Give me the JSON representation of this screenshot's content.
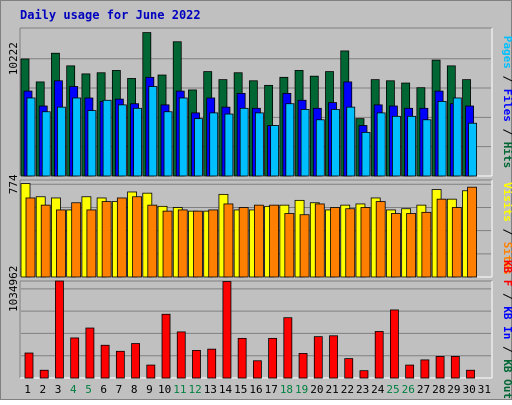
{
  "chart_data": {
    "type": "bar",
    "title": "Daily usage for June 2022",
    "categories": [
      "1",
      "2",
      "3",
      "4",
      "5",
      "6",
      "7",
      "8",
      "9",
      "10",
      "11",
      "12",
      "13",
      "14",
      "15",
      "16",
      "17",
      "18",
      "19",
      "20",
      "21",
      "22",
      "23",
      "24",
      "25",
      "26",
      "27",
      "28",
      "29",
      "30",
      "31"
    ],
    "weekend_days": [
      4,
      5,
      11,
      12,
      18,
      19,
      25,
      26
    ],
    "panels": [
      {
        "name": "top",
        "y_tick_label": "10222",
        "y_tick_value": 10222,
        "ylim": [
          0,
          12900
        ],
        "right_labels": [
          "Pages",
          "Files",
          "Hits"
        ],
        "series": [
          {
            "name": "Hits",
            "color": "#006633",
            "values": [
              10200,
              8200,
              10700,
              9600,
              8900,
              9000,
              9200,
              8500,
              12500,
              8800,
              11700,
              7500,
              9100,
              8400,
              9000,
              8300,
              7900,
              8600,
              9200,
              8700,
              9100,
              10900,
              5000,
              8400,
              8300,
              8100,
              7700,
              10100,
              9600,
              8400,
              0
            ]
          },
          {
            "name": "Files",
            "color": "#0000ff",
            "values": [
              7400,
              6100,
              8300,
              7800,
              6800,
              6500,
              6700,
              6300,
              8600,
              6200,
              7400,
              5500,
              6800,
              6000,
              7200,
              5900,
              4400,
              7200,
              6600,
              5900,
              6400,
              8200,
              4400,
              6200,
              6100,
              5900,
              5900,
              7400,
              6300,
              6100,
              0
            ]
          },
          {
            "name": "Pages",
            "color": "#00bfff",
            "values": [
              6800,
              5600,
              6000,
              6800,
              5700,
              6600,
              6200,
              5900,
              7800,
              5600,
              6800,
              5000,
              5500,
              5400,
              5900,
              5500,
              4400,
              6300,
              5800,
              4900,
              5800,
              6000,
              3800,
              5500,
              5200,
              5200,
              4900,
              6500,
              6800,
              4600,
              0
            ]
          }
        ]
      },
      {
        "name": "middle",
        "y_tick_label": "774",
        "y_tick_value": 774,
        "ylim": [
          0,
          810
        ],
        "right_labels": [
          "Visits",
          "Sites"
        ],
        "series": [
          {
            "name": "Visits",
            "color": "#ffff00",
            "values": [
              780,
              670,
              660,
              560,
              670,
              660,
              630,
              710,
              700,
              590,
              580,
              550,
              550,
              690,
              560,
              560,
              590,
              600,
              640,
              620,
              560,
              600,
              610,
              660,
              560,
              570,
              600,
              730,
              650,
              720,
              0
            ]
          },
          {
            "name": "Sites",
            "color": "#ff8000",
            "values": [
              660,
              600,
              560,
              620,
              560,
              630,
              660,
              670,
              600,
              550,
              560,
              550,
              560,
              610,
              580,
              600,
              600,
              530,
              520,
              610,
              580,
              570,
              580,
              630,
              530,
              530,
              540,
              650,
              580,
              750,
              0
            ]
          }
        ]
      },
      {
        "name": "bottom",
        "y_tick_label": "1034962",
        "y_tick_value": 1034962,
        "ylim": [
          0,
          1126000
        ],
        "right_labels": [
          "KB F",
          "KB In",
          "KB Out"
        ],
        "series": [
          {
            "name": "KB F",
            "color": "#ff0000",
            "values": [
              290000,
              90000,
              1126000,
              465000,
              580000,
              380000,
              310000,
              400000,
              150000,
              740000,
              535000,
              320000,
              335000,
              1120000,
              460000,
              200000,
              460000,
              700000,
              285000,
              480000,
              490000,
              225000,
              85000,
              540000,
              790000,
              150000,
              210000,
              250000,
              250000,
              90000,
              0
            ]
          }
        ]
      }
    ]
  }
}
